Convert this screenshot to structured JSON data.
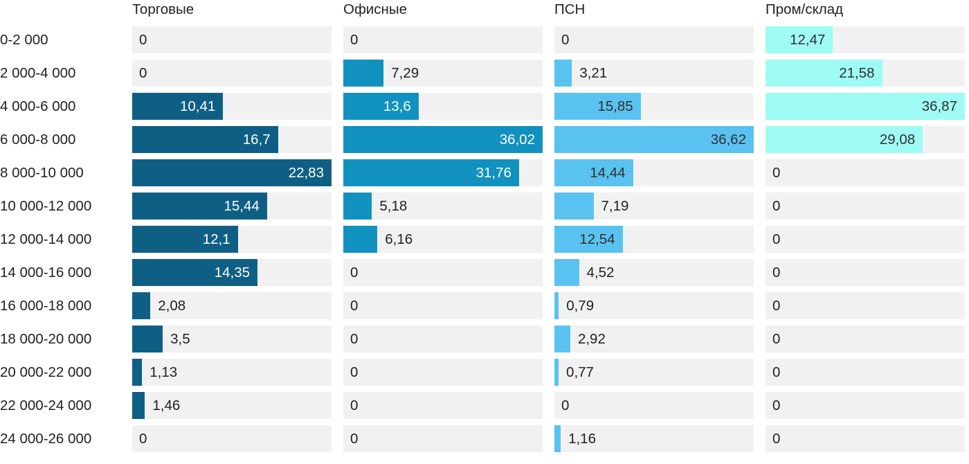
{
  "chart_data": {
    "type": "bar",
    "orientation": "horizontal",
    "title": "",
    "xlabel": "",
    "ylabel": "",
    "grid": false,
    "legend_position": "column-headers-top",
    "track_color": "#F1F1F2",
    "text_color": "#212121",
    "categories": [
      "0-2 000",
      "2 000-4 000",
      "4 000-6 000",
      "6 000-8 000",
      "8 000-10 000",
      "10 000-12 000",
      "12 000-14 000",
      "14 000-16 000",
      "16 000-18 000",
      "18 000-20 000",
      "20 000-22 000",
      "22 000-24 000",
      "24 000-26 000"
    ],
    "series": [
      {
        "name": "Торговые",
        "color": "#0F5F84",
        "label_color_inside": "#FFFFFF",
        "scale_max": 22.83,
        "values": [
          0,
          0,
          10.41,
          16.7,
          22.83,
          15.44,
          12.1,
          14.35,
          2.08,
          3.5,
          1.13,
          1.46,
          0
        ],
        "labels": [
          "0",
          "0",
          "10,41",
          "16,7",
          "22,83",
          "15,44",
          "12,1",
          "14,35",
          "2,08",
          "3,5",
          "1,13",
          "1,46",
          "0"
        ]
      },
      {
        "name": "Офисные",
        "color": "#1191BF",
        "label_color_inside": "#FFFFFF",
        "scale_max": 36.02,
        "values": [
          0,
          7.29,
          13.6,
          36.02,
          31.76,
          5.18,
          6.16,
          0,
          0,
          0,
          0,
          0,
          0
        ],
        "labels": [
          "0",
          "7,29",
          "13,6",
          "36,02",
          "31,76",
          "5,18",
          "6,16",
          "0",
          "0",
          "0",
          "0",
          "0",
          "0"
        ]
      },
      {
        "name": "ПСН",
        "color": "#5AC2F0",
        "label_color_inside": "#2F2F2F",
        "scale_max": 36.62,
        "values": [
          0,
          3.21,
          15.85,
          36.62,
          14.44,
          7.19,
          12.54,
          4.52,
          0.79,
          2.92,
          0.77,
          0,
          1.16
        ],
        "labels": [
          "0",
          "3,21",
          "15,85",
          "36,62",
          "14,44",
          "7,19",
          "12,54",
          "4,52",
          "0,79",
          "2,92",
          "0,77",
          "0",
          "1,16"
        ]
      },
      {
        "name": "Пром/склад",
        "color": "#9EFCF5",
        "label_color_inside": "#2F2F2F",
        "scale_max": 36.87,
        "values": [
          12.47,
          21.58,
          36.87,
          29.08,
          0,
          0,
          0,
          0,
          0,
          0,
          0,
          0,
          0
        ],
        "labels": [
          "12,47",
          "21,58",
          "36,87",
          "29,08",
          "0",
          "0",
          "0",
          "0",
          "0",
          "0",
          "0",
          "0",
          "0"
        ]
      }
    ]
  }
}
